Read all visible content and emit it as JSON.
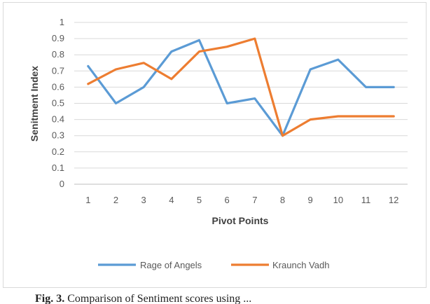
{
  "chart_data": {
    "type": "line",
    "title": "",
    "xlabel": "Pivot Points",
    "ylabel": "Senitment Index",
    "x": [
      1,
      2,
      3,
      4,
      5,
      6,
      7,
      8,
      9,
      10,
      11,
      12
    ],
    "ylim": [
      0,
      1
    ],
    "yticks": [
      "0",
      "0.1",
      "0.2",
      "0.3",
      "0.4",
      "0.5",
      "0.6",
      "0.7",
      "0.8",
      "0.9",
      "1"
    ],
    "grid": true,
    "legend": "bottom",
    "series": [
      {
        "name": "Rage of Angels",
        "color": "#5b9bd5",
        "values": [
          0.73,
          0.5,
          0.6,
          0.82,
          0.89,
          0.5,
          0.53,
          0.3,
          0.71,
          0.77,
          0.6,
          0.6
        ]
      },
      {
        "name": "Kraunch Vadh",
        "color": "#ed7d31",
        "values": [
          0.62,
          0.71,
          0.75,
          0.65,
          0.82,
          0.85,
          0.9,
          0.3,
          0.4,
          0.42,
          0.42,
          0.42
        ]
      }
    ]
  },
  "caption": {
    "prefix": "Fig. 3.",
    "text": " Comparison of Sentiment scores using ..."
  }
}
